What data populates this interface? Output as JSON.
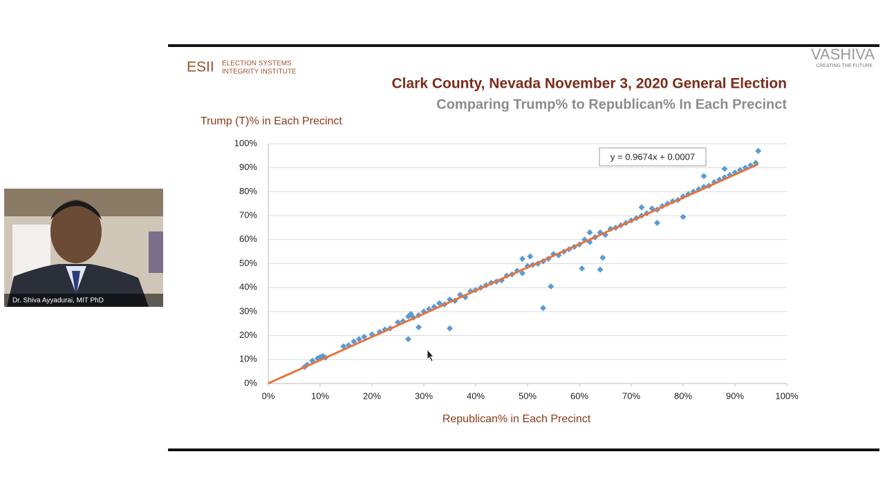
{
  "slide": {
    "logo_mark": "ESII",
    "logo_line1": "ELECTION SYSTEMS",
    "logo_line2": "INTEGRITY INSTITUTE",
    "brand": "VASHIVA",
    "brand_tagline": "CREATING THE FUTURE"
  },
  "webcam": {
    "caption": "Dr. Shiva Ayyadurai, MIT PhD"
  },
  "chart_data": {
    "type": "scatter",
    "title": "Clark County, Nevada November 3, 2020 General Election",
    "subtitle": "Comparing Trump% to Republican% In Each Precinct",
    "y_label": "Trump (T)% in Each Precinct",
    "x_label": "Republican% in Each Precinct",
    "color": "#5b9bd5",
    "x": [
      7,
      7.5,
      8.5,
      9.5,
      10,
      10.5,
      11,
      14.5,
      15.5,
      16.5,
      17.5,
      18.5,
      20,
      21.5,
      22.5,
      23.5,
      25,
      26,
      27,
      27.5,
      28,
      29,
      30,
      31,
      32,
      33,
      34,
      35,
      36,
      37,
      38,
      39,
      40,
      41,
      42,
      43,
      44,
      45,
      46,
      47,
      48,
      49,
      50,
      50.5,
      51,
      52,
      53,
      54,
      55,
      56,
      57,
      58,
      59,
      60,
      61,
      62,
      63,
      64,
      65,
      66,
      67,
      68,
      69,
      70,
      71,
      72,
      73,
      74,
      75,
      76,
      77,
      78,
      79,
      80,
      81,
      82,
      83,
      84,
      85,
      86,
      87,
      88,
      89,
      90,
      91,
      92,
      93,
      94,
      27,
      29,
      35,
      53,
      54.5,
      60.5,
      64,
      64.5,
      75,
      80,
      94.5,
      49,
      62,
      72,
      84,
      88
    ],
    "values": [
      6.9,
      7.8,
      9.5,
      10.5,
      11,
      11.5,
      10.8,
      15.5,
      16,
      17.5,
      18.5,
      19.5,
      20.5,
      21.5,
      22.5,
      23,
      25.5,
      26,
      28,
      29,
      27.5,
      28.5,
      30,
      31,
      32,
      33.5,
      33,
      35,
      34.5,
      37,
      36,
      38.5,
      39,
      40,
      41,
      42,
      42.5,
      43,
      45,
      45.5,
      47,
      46,
      49,
      53,
      49.5,
      50,
      51,
      52,
      54,
      53.5,
      55,
      56,
      57,
      58,
      60,
      59,
      61,
      63,
      62,
      64.5,
      65,
      66,
      67,
      68,
      69,
      70,
      71,
      73,
      72.5,
      74,
      75,
      76,
      76.5,
      78,
      79,
      80,
      81,
      82,
      82.5,
      84,
      85,
      86,
      87,
      88,
      89,
      90,
      91,
      92,
      18.5,
      23.5,
      23,
      31.5,
      40.5,
      48,
      47.5,
      52.5,
      67,
      69.5,
      97,
      52,
      63,
      73.5,
      86.5,
      89.5
    ],
    "trendline": {
      "equation": "y = 0.9674x + 0.0007",
      "color": "#e8743b",
      "x": [
        0,
        94.5
      ],
      "values": [
        0.07,
        91.5
      ]
    },
    "xlim": [
      0,
      100
    ],
    "ylim": [
      0,
      100
    ],
    "xticks": [
      {
        "value": 0,
        "label": "0%"
      },
      {
        "value": 10,
        "label": "10%"
      },
      {
        "value": 20,
        "label": "20%"
      },
      {
        "value": 30,
        "label": "30%"
      },
      {
        "value": 40,
        "label": "40%"
      },
      {
        "value": 50,
        "label": "50%"
      },
      {
        "value": 60,
        "label": "60%"
      },
      {
        "value": 70,
        "label": "70%"
      },
      {
        "value": 80,
        "label": "80%"
      },
      {
        "value": 90,
        "label": "90%"
      },
      {
        "value": 100,
        "label": "100%"
      }
    ],
    "yticks": [
      {
        "value": 0,
        "label": "0%"
      },
      {
        "value": 10,
        "label": "10%"
      },
      {
        "value": 20,
        "label": "20%"
      },
      {
        "value": 30,
        "label": "30%"
      },
      {
        "value": 40,
        "label": "40%"
      },
      {
        "value": 50,
        "label": "50%"
      },
      {
        "value": 60,
        "label": "60%"
      },
      {
        "value": 70,
        "label": "70%"
      },
      {
        "value": 80,
        "label": "80%"
      },
      {
        "value": 90,
        "label": "90%"
      },
      {
        "value": 100,
        "label": "100%"
      }
    ],
    "grid": true
  }
}
